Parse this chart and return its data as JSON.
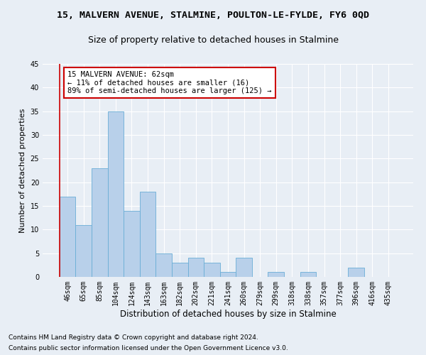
{
  "title": "15, MALVERN AVENUE, STALMINE, POULTON-LE-FYLDE, FY6 0QD",
  "subtitle": "Size of property relative to detached houses in Stalmine",
  "xlabel": "Distribution of detached houses by size in Stalmine",
  "ylabel": "Number of detached properties",
  "categories": [
    "46sqm",
    "65sqm",
    "85sqm",
    "104sqm",
    "124sqm",
    "143sqm",
    "163sqm",
    "182sqm",
    "202sqm",
    "221sqm",
    "241sqm",
    "260sqm",
    "279sqm",
    "299sqm",
    "318sqm",
    "338sqm",
    "357sqm",
    "377sqm",
    "396sqm",
    "416sqm",
    "435sqm"
  ],
  "values": [
    17,
    11,
    23,
    35,
    14,
    18,
    5,
    3,
    4,
    3,
    1,
    4,
    0,
    1,
    0,
    1,
    0,
    0,
    2,
    0,
    0
  ],
  "bar_color": "#b8d0ea",
  "bar_edgecolor": "#6aaed6",
  "annotation_line_color": "#cc0000",
  "annotation_box_edgecolor": "#cc0000",
  "annotation_line1": "15 MALVERN AVENUE: 62sqm",
  "annotation_line2": "← 11% of detached houses are smaller (16)",
  "annotation_line3": "89% of semi-detached houses are larger (125) →",
  "ylim": [
    0,
    45
  ],
  "yticks": [
    0,
    5,
    10,
    15,
    20,
    25,
    30,
    35,
    40,
    45
  ],
  "footer1": "Contains HM Land Registry data © Crown copyright and database right 2024.",
  "footer2": "Contains public sector information licensed under the Open Government Licence v3.0.",
  "background_color": "#e8eef5",
  "plot_background_color": "#e8eef5",
  "grid_color": "#ffffff",
  "title_fontsize": 9.5,
  "subtitle_fontsize": 9,
  "xlabel_fontsize": 8.5,
  "ylabel_fontsize": 8,
  "tick_fontsize": 7,
  "annotation_fontsize": 7.5,
  "footer_fontsize": 6.5
}
